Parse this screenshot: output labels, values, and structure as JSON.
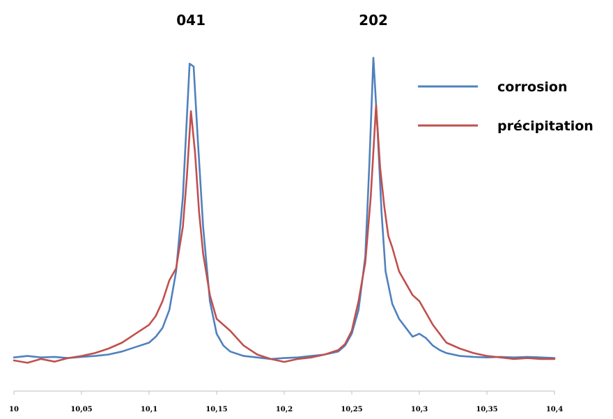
{
  "chart_data": {
    "type": "line",
    "title": "",
    "xlabel": "",
    "ylabel": "",
    "xlim": [
      10,
      10.4
    ],
    "ylim": [
      0,
      1.05
    ],
    "grid": false,
    "legend_position": "top-right",
    "x_ticks": [
      10,
      10.05,
      10.1,
      10.15,
      10.2,
      10.25,
      10.3,
      10.35,
      10.4
    ],
    "x_tick_labels": [
      "10",
      "10,05",
      "10,1",
      "10,15",
      "10,2",
      "10,25",
      "10,3",
      "10,35",
      "10,4"
    ],
    "annotations": [
      {
        "text": "041",
        "x": 10.131
      },
      {
        "text": "202",
        "x": 10.266
      }
    ],
    "series": [
      {
        "name": "corrosion",
        "color": "#4f81bd",
        "x": [
          10.0,
          10.01,
          10.02,
          10.03,
          10.04,
          10.05,
          10.06,
          10.07,
          10.08,
          10.09,
          10.1,
          10.105,
          10.11,
          10.115,
          10.12,
          10.125,
          10.128,
          10.13,
          10.133,
          10.136,
          10.14,
          10.145,
          10.15,
          10.155,
          10.16,
          10.17,
          10.18,
          10.19,
          10.2,
          10.21,
          10.22,
          10.23,
          10.24,
          10.245,
          10.25,
          10.255,
          10.26,
          10.263,
          10.266,
          10.269,
          10.272,
          10.275,
          10.28,
          10.285,
          10.29,
          10.295,
          10.3,
          10.305,
          10.31,
          10.315,
          10.32,
          10.33,
          10.34,
          10.35,
          10.36,
          10.37,
          10.38,
          10.39,
          10.4
        ],
        "values": [
          0.01,
          0.015,
          0.01,
          0.012,
          0.008,
          0.012,
          0.015,
          0.02,
          0.03,
          0.045,
          0.06,
          0.08,
          0.11,
          0.17,
          0.3,
          0.55,
          0.82,
          1.0,
          0.99,
          0.75,
          0.45,
          0.2,
          0.09,
          0.05,
          0.03,
          0.015,
          0.01,
          0.005,
          0.008,
          0.01,
          0.015,
          0.02,
          0.03,
          0.05,
          0.09,
          0.17,
          0.35,
          0.66,
          1.02,
          0.78,
          0.5,
          0.3,
          0.19,
          0.14,
          0.11,
          0.08,
          0.09,
          0.075,
          0.05,
          0.035,
          0.025,
          0.015,
          0.012,
          0.01,
          0.012,
          0.01,
          0.012,
          0.01,
          0.008
        ]
      },
      {
        "name": "précipitation",
        "color": "#c0504d",
        "x": [
          10.0,
          10.01,
          10.02,
          10.03,
          10.04,
          10.05,
          10.06,
          10.07,
          10.08,
          10.09,
          10.1,
          10.105,
          10.11,
          10.115,
          10.12,
          10.125,
          10.128,
          10.131,
          10.134,
          10.137,
          10.14,
          10.145,
          10.15,
          10.155,
          10.16,
          10.17,
          10.18,
          10.19,
          10.2,
          10.21,
          10.22,
          10.23,
          10.24,
          10.245,
          10.25,
          10.255,
          10.26,
          10.264,
          10.268,
          10.271,
          10.274,
          10.277,
          10.28,
          10.285,
          10.29,
          10.295,
          10.3,
          10.31,
          10.32,
          10.33,
          10.34,
          10.35,
          10.36,
          10.37,
          10.38,
          10.39,
          10.4
        ],
        "values": [
          0.0,
          -0.008,
          0.005,
          -0.004,
          0.008,
          0.015,
          0.025,
          0.04,
          0.06,
          0.09,
          0.12,
          0.15,
          0.2,
          0.27,
          0.31,
          0.45,
          0.62,
          0.84,
          0.7,
          0.5,
          0.36,
          0.22,
          0.14,
          0.12,
          0.1,
          0.05,
          0.02,
          0.005,
          -0.005,
          0.005,
          0.01,
          0.02,
          0.035,
          0.055,
          0.1,
          0.2,
          0.33,
          0.55,
          0.86,
          0.65,
          0.52,
          0.42,
          0.38,
          0.3,
          0.26,
          0.22,
          0.2,
          0.12,
          0.06,
          0.04,
          0.025,
          0.015,
          0.01,
          0.005,
          0.008,
          0.005,
          0.005
        ]
      }
    ]
  }
}
